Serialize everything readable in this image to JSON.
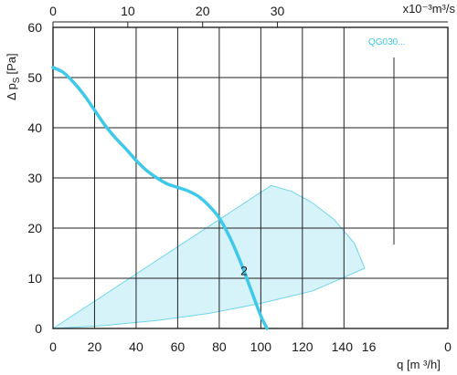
{
  "chart_data": {
    "type": "line",
    "primary_x": {
      "label": "q [m ³/h]",
      "ticks": [
        "0",
        "20",
        "40",
        "60",
        "80",
        "100",
        "120",
        "140",
        "16",
        "0"
      ],
      "range": [
        0,
        190
      ]
    },
    "secondary_x": {
      "label": "x10⁻³m³/s",
      "ticks": [
        "0",
        "10",
        "20",
        "30"
      ],
      "tick_values": [
        0,
        10,
        20,
        30
      ]
    },
    "y": {
      "label": "Δ p",
      "label_sub": "S",
      "label_unit": "[Pa]",
      "ticks": [
        "0",
        "10",
        "20",
        "30",
        "40",
        "50",
        "60"
      ],
      "range": [
        0,
        60
      ]
    },
    "grid": true,
    "series": [
      {
        "name": "2",
        "color": "#3ec8ea",
        "points": [
          [
            0,
            52
          ],
          [
            5,
            51
          ],
          [
            10,
            49
          ],
          [
            15,
            46.5
          ],
          [
            20,
            43.5
          ],
          [
            25,
            40.5
          ],
          [
            30,
            38
          ],
          [
            35,
            35.8
          ],
          [
            40,
            33.5
          ],
          [
            45,
            31.5
          ],
          [
            50,
            30
          ],
          [
            55,
            28.8
          ],
          [
            60,
            28.1
          ],
          [
            65,
            27.4
          ],
          [
            70,
            26.3
          ],
          [
            75,
            24.5
          ],
          [
            80,
            22
          ],
          [
            85,
            18.2
          ],
          [
            90,
            13.5
          ],
          [
            95,
            8
          ],
          [
            100,
            2.5
          ],
          [
            103,
            0
          ]
        ]
      }
    ],
    "operating_area": {
      "legend": "QG030...",
      "fill": "#d6f3f9",
      "stroke": "#6fd4ec",
      "upper": [
        [
          0,
          0
        ],
        [
          105,
          28.5
        ],
        [
          115,
          27.3
        ],
        [
          125,
          25
        ],
        [
          135,
          21.8
        ],
        [
          145,
          17
        ],
        [
          150,
          12
        ]
      ],
      "lower": [
        [
          150,
          12
        ],
        [
          125,
          7.5
        ],
        [
          100,
          5
        ],
        [
          75,
          3
        ],
        [
          50,
          1.6
        ],
        [
          25,
          0.6
        ],
        [
          0,
          0
        ]
      ]
    }
  }
}
